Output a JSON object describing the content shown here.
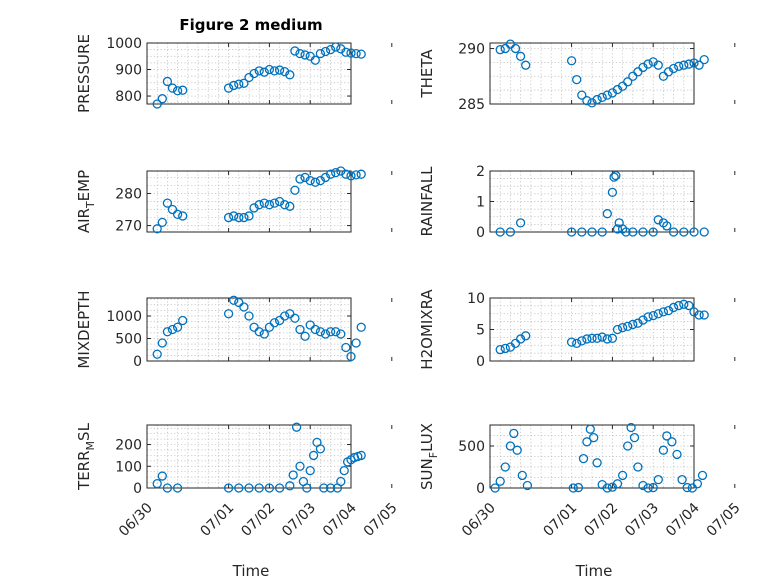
{
  "figure": {
    "title": "Figure 2 medium",
    "x_label": "Time",
    "x_tick_labels": [
      "06/30",
      "07/01",
      "07/02",
      "07/03",
      "07/04",
      "07/05"
    ]
  },
  "colors": {
    "marker": "#0072bd",
    "axis": "#262626",
    "grid": "#b8b8b8",
    "background": "#ffffff"
  },
  "chart_data": [
    {
      "type": "scatter",
      "ylabel": "PRESSURE",
      "ylim": [
        770,
        1000
      ],
      "yticks": [
        800,
        900,
        1000
      ],
      "xlim": [
        "06/30",
        "07/05"
      ],
      "grid": true,
      "x": [
        "06/30 06:00",
        "06/30 09:00",
        "06/30 12:00",
        "06/30 15:00",
        "06/30 18:00",
        "06/30 21:00",
        "07/01 00:00",
        "07/01 03:00",
        "07/01 06:00",
        "07/01 09:00",
        "07/01 12:00",
        "07/01 15:00",
        "07/01 18:00",
        "07/01 21:00",
        "07/02 00:00",
        "07/02 03:00",
        "07/02 06:00",
        "07/02 09:00",
        "07/02 12:00",
        "07/02 15:00",
        "07/02 18:00",
        "07/02 21:00",
        "07/03 00:00",
        "07/03 03:00",
        "07/03 06:00",
        "07/03 09:00",
        "07/03 12:00",
        "07/03 15:00",
        "07/03 18:00",
        "07/03 21:00",
        "07/04 00:00",
        "07/04 03:00",
        "07/04 06:00"
      ],
      "values": [
        770,
        790,
        855,
        830,
        820,
        822,
        830,
        840,
        845,
        848,
        870,
        885,
        895,
        890,
        900,
        895,
        898,
        892,
        880,
        970,
        960,
        955,
        950,
        935,
        960,
        968,
        975,
        985,
        978,
        965,
        962,
        960,
        958
      ]
    },
    {
      "type": "scatter",
      "ylabel": "THETA",
      "ylim": [
        285,
        290.5
      ],
      "yticks": [
        285,
        290
      ],
      "xlim": [
        "06/30",
        "07/05"
      ],
      "grid": true,
      "x": [
        "06/30 06:00",
        "06/30 09:00",
        "06/30 12:00",
        "06/30 15:00",
        "06/30 18:00",
        "06/30 21:00",
        "07/01 00:00",
        "07/01 03:00",
        "07/01 06:00",
        "07/01 09:00",
        "07/01 12:00",
        "07/01 15:00",
        "07/01 18:00",
        "07/01 21:00",
        "07/02 00:00",
        "07/02 03:00",
        "07/02 06:00",
        "07/02 09:00",
        "07/02 12:00",
        "07/02 15:00",
        "07/02 18:00",
        "07/02 21:00",
        "07/03 00:00",
        "07/03 03:00",
        "07/03 06:00",
        "07/03 09:00",
        "07/03 12:00",
        "07/03 15:00",
        "07/03 18:00",
        "07/03 21:00",
        "07/04 00:00",
        "07/04 03:00",
        "07/04 06:00"
      ],
      "values": [
        289.9,
        290,
        290.4,
        290,
        289.3,
        288.5,
        288.9,
        287.2,
        285.8,
        285.3,
        285.1,
        285.4,
        285.6,
        285.8,
        286.0,
        286.3,
        286.6,
        287.0,
        287.5,
        287.9,
        288.3,
        288.6,
        288.8,
        288.5,
        287.5,
        287.9,
        288.2,
        288.4,
        288.5,
        288.6,
        288.7,
        288.5,
        289.0
      ]
    },
    {
      "type": "scatter",
      "ylabel": "AIR_TEMP",
      "ylim": [
        268,
        287
      ],
      "yticks": [
        270,
        280
      ],
      "xlim": [
        "06/30",
        "07/05"
      ],
      "grid": true,
      "x": [
        "06/30 06:00",
        "06/30 09:00",
        "06/30 12:00",
        "06/30 15:00",
        "06/30 18:00",
        "06/30 21:00",
        "07/01 00:00",
        "07/01 03:00",
        "07/01 06:00",
        "07/01 09:00",
        "07/01 12:00",
        "07/01 15:00",
        "07/01 18:00",
        "07/01 21:00",
        "07/02 00:00",
        "07/02 03:00",
        "07/02 06:00",
        "07/02 09:00",
        "07/02 12:00",
        "07/02 15:00",
        "07/02 18:00",
        "07/02 21:00",
        "07/03 00:00",
        "07/03 03:00",
        "07/03 06:00",
        "07/03 09:00",
        "07/03 12:00",
        "07/03 15:00",
        "07/03 18:00",
        "07/03 21:00",
        "07/04 00:00",
        "07/04 03:00",
        "07/04 06:00"
      ],
      "values": [
        269,
        271,
        277,
        275,
        273.5,
        273,
        272.5,
        273,
        272.5,
        272.5,
        273,
        275.5,
        276.5,
        277,
        276.5,
        277,
        277.5,
        276.5,
        276,
        281,
        284.5,
        285,
        284,
        283.5,
        284,
        285,
        286,
        286.5,
        287,
        286,
        285.5,
        285.8,
        286
      ]
    },
    {
      "type": "scatter",
      "ylabel": "RAINFALL",
      "ylim": [
        0,
        2
      ],
      "yticks": [
        0,
        1,
        2
      ],
      "xlim": [
        "06/30",
        "07/05"
      ],
      "grid": true,
      "x": [
        "06/30 06:00",
        "06/30 12:00",
        "06/30 18:00",
        "07/01 00:00",
        "07/01 06:00",
        "07/01 12:00",
        "07/01 18:00",
        "07/01 21:00",
        "07/02 00:00",
        "07/02 01:00",
        "07/02 02:00",
        "07/02 03:00",
        "07/02 04:00",
        "07/02 06:00",
        "07/02 08:00",
        "07/02 12:00",
        "07/02 18:00",
        "07/03 00:00",
        "07/03 03:00",
        "07/03 06:00",
        "07/03 08:00",
        "07/03 12:00",
        "07/03 18:00",
        "07/04 00:00",
        "07/04 06:00"
      ],
      "values": [
        0,
        0,
        0.3,
        0,
        0,
        0,
        0,
        0.6,
        1.3,
        1.8,
        1.85,
        0.1,
        0.3,
        0.1,
        0,
        0,
        0,
        0,
        0.4,
        0.3,
        0.2,
        0,
        0,
        0,
        0
      ]
    },
    {
      "type": "scatter",
      "ylabel": "MIXDEPTH",
      "ylim": [
        0,
        1400
      ],
      "yticks": [
        0,
        500,
        1000
      ],
      "xlim": [
        "06/30",
        "07/05"
      ],
      "grid": true,
      "x": [
        "06/30 06:00",
        "06/30 09:00",
        "06/30 12:00",
        "06/30 15:00",
        "06/30 18:00",
        "06/30 21:00",
        "07/01 00:00",
        "07/01 03:00",
        "07/01 06:00",
        "07/01 09:00",
        "07/01 12:00",
        "07/01 15:00",
        "07/01 18:00",
        "07/01 21:00",
        "07/02 00:00",
        "07/02 03:00",
        "07/02 06:00",
        "07/02 09:00",
        "07/02 12:00",
        "07/02 15:00",
        "07/02 18:00",
        "07/02 21:00",
        "07/03 00:00",
        "07/03 03:00",
        "07/03 06:00",
        "07/03 09:00",
        "07/03 12:00",
        "07/03 15:00",
        "07/03 18:00",
        "07/03 21:00",
        "07/04 00:00",
        "07/04 03:00",
        "07/04 06:00"
      ],
      "values": [
        150,
        400,
        650,
        700,
        750,
        900,
        1050,
        1350,
        1300,
        1200,
        1000,
        750,
        650,
        600,
        750,
        850,
        900,
        1000,
        1050,
        950,
        700,
        550,
        800,
        700,
        650,
        600,
        650,
        650,
        600,
        300,
        100,
        400,
        750
      ]
    },
    {
      "type": "scatter",
      "ylabel": "H2OMIXRA",
      "ylim": [
        0,
        10
      ],
      "yticks": [
        0,
        5,
        10
      ],
      "xlim": [
        "06/30",
        "07/05"
      ],
      "grid": true,
      "x": [
        "06/30 06:00",
        "06/30 09:00",
        "06/30 12:00",
        "06/30 15:00",
        "06/30 18:00",
        "06/30 21:00",
        "07/01 00:00",
        "07/01 03:00",
        "07/01 06:00",
        "07/01 09:00",
        "07/01 12:00",
        "07/01 15:00",
        "07/01 18:00",
        "07/01 21:00",
        "07/02 00:00",
        "07/02 03:00",
        "07/02 06:00",
        "07/02 09:00",
        "07/02 12:00",
        "07/02 15:00",
        "07/02 18:00",
        "07/02 21:00",
        "07/03 00:00",
        "07/03 03:00",
        "07/03 06:00",
        "07/03 09:00",
        "07/03 12:00",
        "07/03 15:00",
        "07/03 18:00",
        "07/03 21:00",
        "07/04 00:00",
        "07/04 03:00",
        "07/04 06:00"
      ],
      "values": [
        1.8,
        2.0,
        2.2,
        2.8,
        3.5,
        4.0,
        3.0,
        2.8,
        3.2,
        3.5,
        3.6,
        3.6,
        3.8,
        3.5,
        3.6,
        5.0,
        5.3,
        5.5,
        5.8,
        6.0,
        6.5,
        7.0,
        7.2,
        7.5,
        7.8,
        8.0,
        8.5,
        8.8,
        9.0,
        8.8,
        7.8,
        7.3,
        7.3
      ]
    },
    {
      "type": "scatter",
      "ylabel": "TERR_MSL",
      "ylim": [
        0,
        290
      ],
      "yticks": [
        0,
        100,
        200
      ],
      "xlim": [
        "06/30",
        "07/05"
      ],
      "grid": true,
      "x": [
        "06/30 06:00",
        "06/30 09:00",
        "06/30 12:00",
        "06/30 18:00",
        "07/01 00:00",
        "07/01 06:00",
        "07/01 12:00",
        "07/01 18:00",
        "07/02 00:00",
        "07/02 06:00",
        "07/02 12:00",
        "07/02 14:00",
        "07/02 16:00",
        "07/02 18:00",
        "07/02 20:00",
        "07/02 22:00",
        "07/03 00:00",
        "07/03 02:00",
        "07/03 04:00",
        "07/03 06:00",
        "07/03 08:00",
        "07/03 12:00",
        "07/03 16:00",
        "07/03 18:00",
        "07/03 20:00",
        "07/03 22:00",
        "07/04 00:00",
        "07/04 02:00",
        "07/04 04:00",
        "07/04 06:00"
      ],
      "values": [
        20,
        55,
        0,
        0,
        0,
        0,
        0,
        0,
        0,
        0,
        10,
        60,
        280,
        100,
        30,
        0,
        80,
        150,
        210,
        180,
        0,
        0,
        0,
        30,
        80,
        120,
        130,
        140,
        145,
        150
      ]
    },
    {
      "type": "scatter",
      "ylabel": "SUN_FLUX",
      "ylim": [
        0,
        750
      ],
      "yticks": [
        0,
        500
      ],
      "xlim": [
        "06/30",
        "07/05"
      ],
      "grid": true,
      "x": [
        "06/30 03:00",
        "06/30 06:00",
        "06/30 09:00",
        "06/30 12:00",
        "06/30 14:00",
        "06/30 16:00",
        "06/30 19:00",
        "06/30 22:00",
        "07/01 01:00",
        "07/01 04:00",
        "07/01 07:00",
        "07/01 09:00",
        "07/01 11:00",
        "07/01 13:00",
        "07/01 15:00",
        "07/01 18:00",
        "07/01 21:00",
        "07/02 00:00",
        "07/02 03:00",
        "07/02 06:00",
        "07/02 09:00",
        "07/02 11:00",
        "07/02 13:00",
        "07/02 15:00",
        "07/02 18:00",
        "07/02 21:00",
        "07/03 00:00",
        "07/03 03:00",
        "07/03 06:00",
        "07/03 08:00",
        "07/03 11:00",
        "07/03 14:00",
        "07/03 17:00",
        "07/03 20:00",
        "07/03 23:00",
        "07/04 02:00",
        "07/04 05:00"
      ],
      "values": [
        0,
        80,
        250,
        500,
        650,
        450,
        150,
        30,
        0,
        5,
        350,
        550,
        700,
        600,
        300,
        40,
        0,
        10,
        50,
        150,
        500,
        720,
        600,
        250,
        30,
        0,
        5,
        100,
        450,
        620,
        550,
        400,
        100,
        5,
        0,
        50,
        150
      ]
    }
  ]
}
